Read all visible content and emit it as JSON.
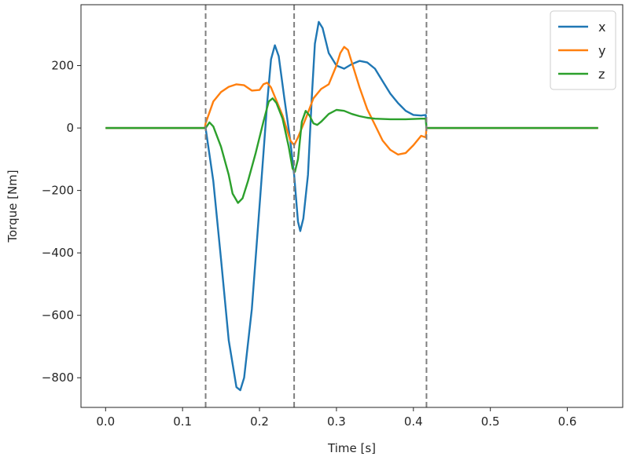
{
  "chart_data": {
    "type": "line",
    "title": "",
    "xlabel": "Time [s]",
    "ylabel": "Torque [Nm]",
    "xlim": [
      -0.032,
      0.672
    ],
    "ylim": [
      -895,
      395
    ],
    "xticks": [
      0.0,
      0.1,
      0.2,
      0.3,
      0.4,
      0.5,
      0.6
    ],
    "xtick_labels": [
      "0.0",
      "0.1",
      "0.2",
      "0.3",
      "0.4",
      "0.5",
      "0.6"
    ],
    "yticks": [
      -800,
      -600,
      -400,
      -200,
      0,
      200
    ],
    "ytick_labels": [
      "−800",
      "−600",
      "−400",
      "−200",
      "0",
      "200"
    ],
    "grid": false,
    "legend_position": "top-right",
    "vlines": [
      {
        "x": 0.13,
        "style": "dashed",
        "color": "#7f7f7f"
      },
      {
        "x": 0.245,
        "style": "dashed",
        "color": "#7f7f7f"
      },
      {
        "x": 0.417,
        "style": "dashed",
        "color": "#7f7f7f"
      }
    ],
    "series": [
      {
        "name": "x",
        "color": "#1f77b4",
        "points": [
          [
            0.0,
            0
          ],
          [
            0.129,
            0
          ],
          [
            0.13,
            0
          ],
          [
            0.14,
            -170
          ],
          [
            0.15,
            -420
          ],
          [
            0.16,
            -680
          ],
          [
            0.17,
            -830
          ],
          [
            0.175,
            -840
          ],
          [
            0.18,
            -800
          ],
          [
            0.19,
            -580
          ],
          [
            0.2,
            -250
          ],
          [
            0.21,
            80
          ],
          [
            0.215,
            220
          ],
          [
            0.22,
            265
          ],
          [
            0.225,
            230
          ],
          [
            0.232,
            100
          ],
          [
            0.24,
            -40
          ],
          [
            0.245,
            -150
          ],
          [
            0.25,
            -300
          ],
          [
            0.253,
            -330
          ],
          [
            0.257,
            -290
          ],
          [
            0.263,
            -150
          ],
          [
            0.268,
            100
          ],
          [
            0.272,
            270
          ],
          [
            0.277,
            340
          ],
          [
            0.282,
            320
          ],
          [
            0.29,
            240
          ],
          [
            0.3,
            200
          ],
          [
            0.31,
            190
          ],
          [
            0.32,
            205
          ],
          [
            0.33,
            215
          ],
          [
            0.34,
            210
          ],
          [
            0.35,
            190
          ],
          [
            0.36,
            150
          ],
          [
            0.37,
            110
          ],
          [
            0.38,
            80
          ],
          [
            0.39,
            55
          ],
          [
            0.4,
            42
          ],
          [
            0.41,
            40
          ],
          [
            0.416,
            42
          ],
          [
            0.417,
            0
          ],
          [
            0.418,
            0
          ],
          [
            0.64,
            0
          ]
        ]
      },
      {
        "name": "y",
        "color": "#ff7f0e",
        "points": [
          [
            0.0,
            0
          ],
          [
            0.129,
            0
          ],
          [
            0.13,
            15
          ],
          [
            0.14,
            85
          ],
          [
            0.15,
            115
          ],
          [
            0.16,
            132
          ],
          [
            0.17,
            140
          ],
          [
            0.18,
            137
          ],
          [
            0.19,
            120
          ],
          [
            0.2,
            122
          ],
          [
            0.205,
            140
          ],
          [
            0.21,
            145
          ],
          [
            0.215,
            130
          ],
          [
            0.22,
            100
          ],
          [
            0.23,
            40
          ],
          [
            0.24,
            -40
          ],
          [
            0.245,
            -55
          ],
          [
            0.25,
            -30
          ],
          [
            0.26,
            30
          ],
          [
            0.27,
            95
          ],
          [
            0.28,
            125
          ],
          [
            0.29,
            140
          ],
          [
            0.3,
            200
          ],
          [
            0.305,
            240
          ],
          [
            0.31,
            260
          ],
          [
            0.315,
            250
          ],
          [
            0.32,
            210
          ],
          [
            0.33,
            130
          ],
          [
            0.34,
            60
          ],
          [
            0.35,
            10
          ],
          [
            0.36,
            -40
          ],
          [
            0.37,
            -70
          ],
          [
            0.38,
            -85
          ],
          [
            0.39,
            -80
          ],
          [
            0.4,
            -55
          ],
          [
            0.41,
            -25
          ],
          [
            0.416,
            -30
          ],
          [
            0.417,
            0
          ],
          [
            0.418,
            0
          ],
          [
            0.64,
            0
          ]
        ]
      },
      {
        "name": "z",
        "color": "#2ca02c",
        "points": [
          [
            0.0,
            0
          ],
          [
            0.129,
            0
          ],
          [
            0.13,
            0
          ],
          [
            0.135,
            18
          ],
          [
            0.14,
            5
          ],
          [
            0.15,
            -60
          ],
          [
            0.16,
            -150
          ],
          [
            0.165,
            -210
          ],
          [
            0.172,
            -240
          ],
          [
            0.178,
            -225
          ],
          [
            0.185,
            -170
          ],
          [
            0.195,
            -80
          ],
          [
            0.205,
            20
          ],
          [
            0.212,
            85
          ],
          [
            0.217,
            95
          ],
          [
            0.222,
            80
          ],
          [
            0.23,
            30
          ],
          [
            0.238,
            -60
          ],
          [
            0.243,
            -130
          ],
          [
            0.246,
            -140
          ],
          [
            0.25,
            -100
          ],
          [
            0.255,
            20
          ],
          [
            0.26,
            55
          ],
          [
            0.265,
            40
          ],
          [
            0.27,
            15
          ],
          [
            0.275,
            10
          ],
          [
            0.28,
            20
          ],
          [
            0.29,
            45
          ],
          [
            0.3,
            58
          ],
          [
            0.31,
            55
          ],
          [
            0.32,
            45
          ],
          [
            0.33,
            38
          ],
          [
            0.34,
            33
          ],
          [
            0.35,
            30
          ],
          [
            0.37,
            28
          ],
          [
            0.39,
            28
          ],
          [
            0.41,
            30
          ],
          [
            0.416,
            30
          ],
          [
            0.417,
            0
          ],
          [
            0.418,
            0
          ],
          [
            0.64,
            0
          ]
        ]
      }
    ]
  }
}
